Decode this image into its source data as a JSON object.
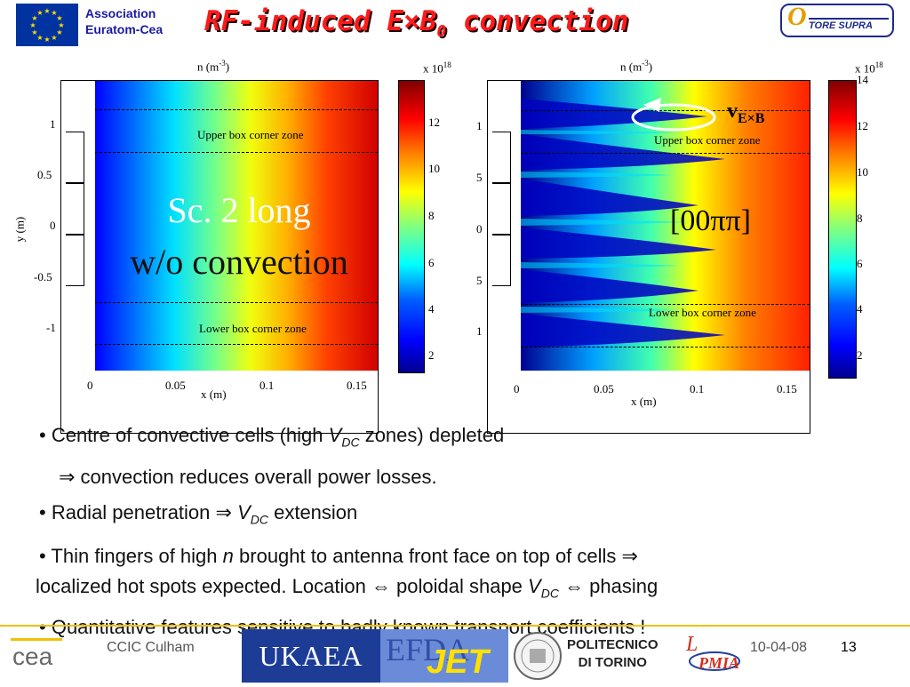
{
  "header": {
    "org_line1": "Association",
    "org_line2": "Euratom-Cea",
    "title_prefix": "RF-induced E",
    "title_op": "×",
    "title_b": "B",
    "title_sub": "0",
    "title_suffix": " convection",
    "tore_text": "TORE SUPRA"
  },
  "left_plot": {
    "title": "n (m",
    "title_exp": "-3",
    "title_close": ")",
    "cbar_scale": "x 10",
    "cbar_scale_exp": "18",
    "cbar_ticks": [
      "12",
      "10",
      "8",
      "6",
      "4",
      "2"
    ],
    "y_ticks": [
      "1",
      "0.5",
      "0",
      "-0.5",
      "-1"
    ],
    "x_ticks": [
      "0",
      "0.05",
      "0.1",
      "0.15"
    ],
    "xlabel": "x (m)",
    "ylabel": "y (m)",
    "upper_zone": "Upper box corner zone",
    "lower_zone": "Lower box corner zone",
    "overlay_line1": "Sc. 2 long",
    "overlay_line2": "w/o convection"
  },
  "right_plot": {
    "title": "n (m",
    "title_exp": "-3",
    "title_close": ")",
    "cbar_scale": "x 10",
    "cbar_scale_exp": "18",
    "cbar_ticks": [
      "14",
      "12",
      "10",
      "8",
      "6",
      "4",
      "2"
    ],
    "y_ticks": [
      "1",
      "5",
      "0",
      "5",
      "1"
    ],
    "x_ticks": [
      "0",
      "0.05",
      "0.1",
      "0.15"
    ],
    "xlabel": "x (m)",
    "upper_zone": "Upper box corner zone",
    "lower_zone": "Lower box corner zone",
    "v_label": "v",
    "v_sub": "E×B",
    "phasing": "[00ππ]"
  },
  "bullets": [
    {
      "pre": "Centre of convective cells (high ",
      "var": "V",
      "sub": "DC",
      "post": " zones) depleted"
    },
    {
      "text": "⇒ convection reduces overall power losses."
    },
    {
      "pre": "Radial penetration ⇒ ",
      "var": "V",
      "sub": "DC",
      "post": " extension"
    },
    {
      "pre": "Thin fingers of high ",
      "var": "n",
      "post": " brought to antenna front face on top of cells ⇒"
    },
    {
      "pre": "localized hot spots expected. Location ⇔ poloidal shape ",
      "var": "V",
      "sub": "DC",
      "post": " ⇔ phasing"
    },
    {
      "text": "Quantitative features sensitive to badly known transport coefficients !"
    }
  ],
  "footer": {
    "event": "CCIC Culham",
    "ukaea": "UKAEA",
    "efda": "EFDA",
    "jet": "JET",
    "polito_line1": "POLITECNICO",
    "polito_line2": "DI TORINO",
    "date": "10-04-08",
    "page": "13"
  }
}
